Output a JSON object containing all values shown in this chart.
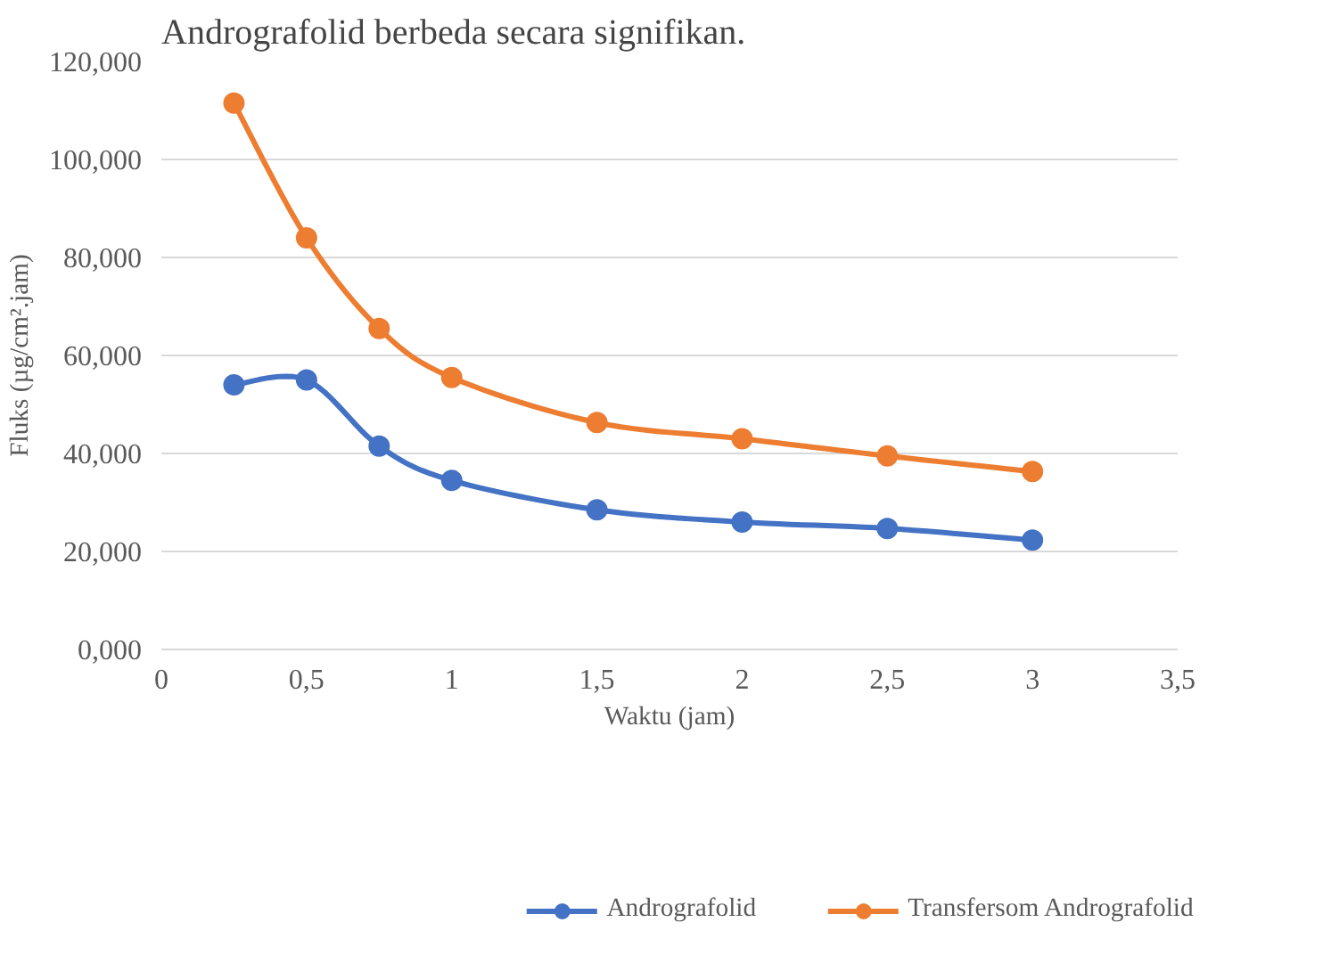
{
  "chart_data": {
    "type": "line",
    "xlabel": "Waktu (jam)",
    "ylabel": "Fluks (µg/cm².jam)",
    "annotations": [
      "Andrografolid berbeda secara signifikan."
    ],
    "x": [
      0.25,
      0.5,
      0.75,
      1,
      1.5,
      2,
      2.5,
      3
    ],
    "series": [
      {
        "name": "Andrografolid",
        "color": "#4472c4",
        "values": [
          54.0,
          55.0,
          41.5,
          34.5,
          28.5,
          26.0,
          24.7,
          22.3
        ]
      },
      {
        "name": "Transfersom Andrografolid",
        "color": "#ed7d31",
        "values": [
          111.5,
          84.0,
          65.5,
          55.5,
          46.3,
          43.0,
          39.5,
          36.3
        ]
      }
    ],
    "xlim": [
      0,
      3.5
    ],
    "xticks": [
      {
        "value": 0,
        "label": "0"
      },
      {
        "value": 0.5,
        "label": "0,5"
      },
      {
        "value": 1,
        "label": "1"
      },
      {
        "value": 1.5,
        "label": "1,5"
      },
      {
        "value": 2,
        "label": "2"
      },
      {
        "value": 2.5,
        "label": "2,5"
      },
      {
        "value": 3,
        "label": "3"
      },
      {
        "value": 3.5,
        "label": "3,5"
      }
    ],
    "ylim": [
      0,
      120
    ],
    "yticks": [
      {
        "value": 0,
        "label": "0,000"
      },
      {
        "value": 20,
        "label": "20,000"
      },
      {
        "value": 40,
        "label": "40,000"
      },
      {
        "value": 60,
        "label": "60,000"
      },
      {
        "value": 80,
        "label": "80,000"
      },
      {
        "value": 100,
        "label": "100,000"
      },
      {
        "value": 120,
        "label": "120,000"
      }
    ],
    "grid": "y",
    "legend": "bottom",
    "marker": "circle",
    "line_style": "solid"
  }
}
